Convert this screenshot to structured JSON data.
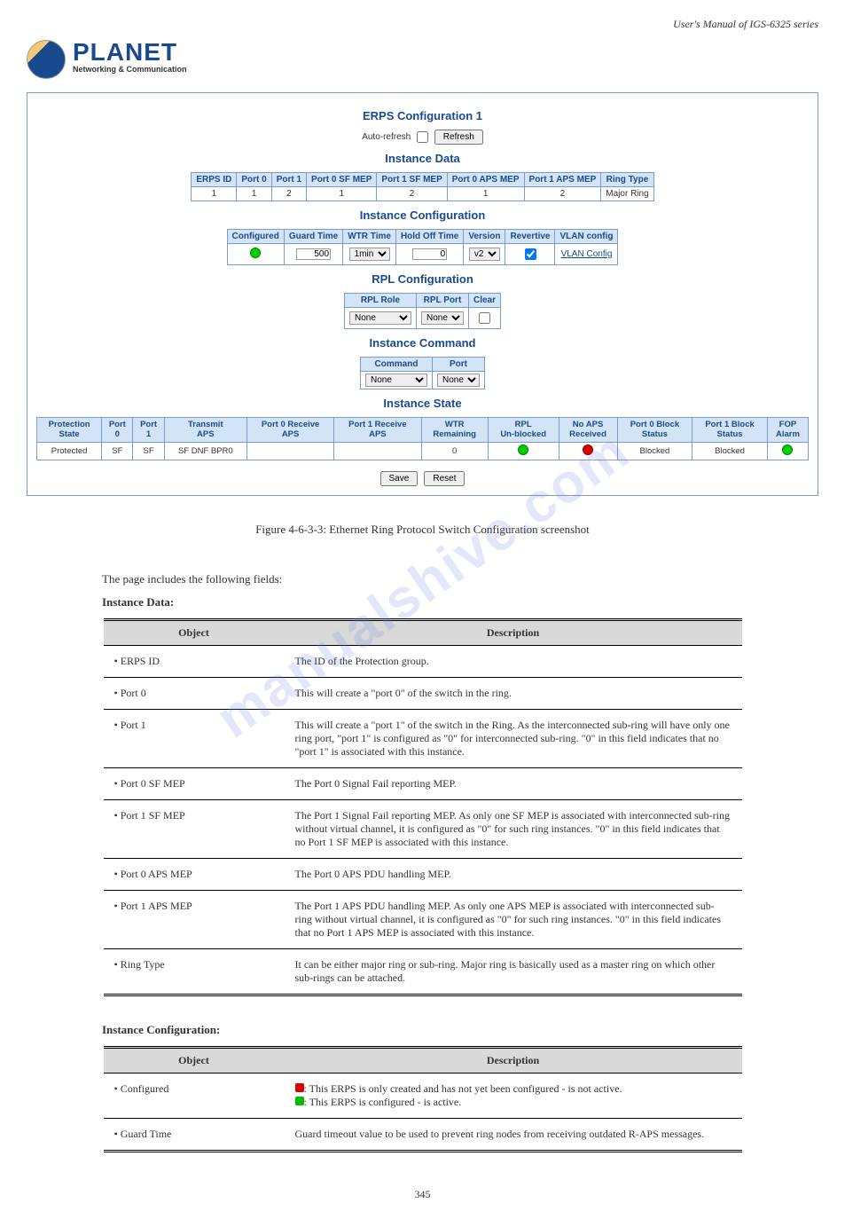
{
  "header_text": "User's Manual of IGS-6325 series",
  "logo": {
    "name": "PLANET",
    "tagline": "Networking & Communication"
  },
  "watermark": "manualshive.com",
  "panel": {
    "title": "ERPS Configuration 1",
    "auto_refresh_label": "Auto-refresh",
    "refresh_btn": "Refresh",
    "sections": {
      "instance_data": {
        "title": "Instance Data",
        "headers": [
          "ERPS ID",
          "Port 0",
          "Port 1",
          "Port 0 SF MEP",
          "Port 1 SF MEP",
          "Port 0 APS MEP",
          "Port 1 APS MEP",
          "Ring Type"
        ],
        "row": [
          "1",
          "1",
          "2",
          "1",
          "2",
          "1",
          "2",
          "Major Ring"
        ]
      },
      "instance_config": {
        "title": "Instance Configuration",
        "headers": [
          "Configured",
          "Guard Time",
          "WTR Time",
          "Hold Off Time",
          "Version",
          "Revertive",
          "VLAN config"
        ],
        "guard_time": "500",
        "wtr_time": "1min",
        "hold_off": "0",
        "version": "v2",
        "vlan_link": "VLAN Config"
      },
      "rpl": {
        "title": "RPL Configuration",
        "headers": [
          "RPL Role",
          "RPL Port",
          "Clear"
        ],
        "role": "None",
        "port": "None"
      },
      "instance_cmd": {
        "title": "Instance Command",
        "headers": [
          "Command",
          "Port"
        ],
        "command": "None",
        "port": "None"
      },
      "instance_state": {
        "title": "Instance State",
        "headers": [
          "Protection\nState",
          "Port\n0",
          "Port\n1",
          "Transmit\nAPS",
          "Port 0 Receive\nAPS",
          "Port 1 Receive\nAPS",
          "WTR\nRemaining",
          "RPL\nUn-blocked",
          "No APS\nReceived",
          "Port 0 Block\nStatus",
          "Port 1 Block\nStatus",
          "FOP\nAlarm"
        ],
        "row": [
          "Protected",
          "SF",
          "SF",
          "SF DNF BPR0",
          "",
          "",
          "0",
          "green",
          "red",
          "Blocked",
          "Blocked",
          "green"
        ]
      }
    },
    "save_btn": "Save",
    "reset_btn": "Reset"
  },
  "figure_caption": "Figure 4-6-3-3: Ethernet Ring Protocol Switch Configuration screenshot",
  "table1": {
    "intro": "The page includes the following fields:",
    "title": "Instance Data:",
    "header": [
      "Object",
      "Description"
    ],
    "rows": [
      [
        "• ERPS ID",
        "The ID of the Protection group."
      ],
      [
        "• Port 0",
        "This will create a \"port 0\" of the switch in the ring."
      ],
      [
        "• Port 1",
        "This will create a \"port 1\" of the switch in the Ring. As the interconnected sub-ring will have only one ring port, \"port 1\" is configured as \"0\" for interconnected sub-ring. \"0\" in this field indicates that no \"port 1\" is associated with this instance."
      ],
      [
        "• Port 0 SF MEP",
        "The Port 0 Signal Fail reporting MEP."
      ],
      [
        "• Port 1 SF MEP",
        "The Port 1 Signal Fail reporting MEP. As only one SF MEP is associated with interconnected sub-ring without virtual channel, it is configured as \"0\" for such ring instances. \"0\" in this field indicates that no Port 1 SF MEP is associated with this instance."
      ],
      [
        "• Port 0 APS MEP",
        "The Port 0 APS PDU handling MEP."
      ],
      [
        "• Port 1 APS MEP",
        "The Port 1 APS PDU handling MEP. As only one APS MEP is associated with interconnected sub-ring without virtual channel, it is configured as \"0\" for such ring instances. \"0\" in this field indicates that no Port 1 APS MEP is associated with this instance."
      ],
      [
        "• Ring Type",
        "It can be either major ring or sub-ring. Major ring is basically used as a master ring on which other sub-rings can be attached."
      ]
    ]
  },
  "table2": {
    "title": "Instance Configuration:",
    "header": [
      "Object",
      "Description"
    ],
    "rows": [
      [
        "• Configured",
        "__LED__: This ERPS is only created and has not yet been configured - is not active.\n__LEDG__: This ERPS is configured - is active."
      ],
      [
        "• Guard Time",
        "Guard timeout value to be used to prevent ring nodes from receiving outdated R-APS messages."
      ]
    ]
  },
  "page_number": "345"
}
